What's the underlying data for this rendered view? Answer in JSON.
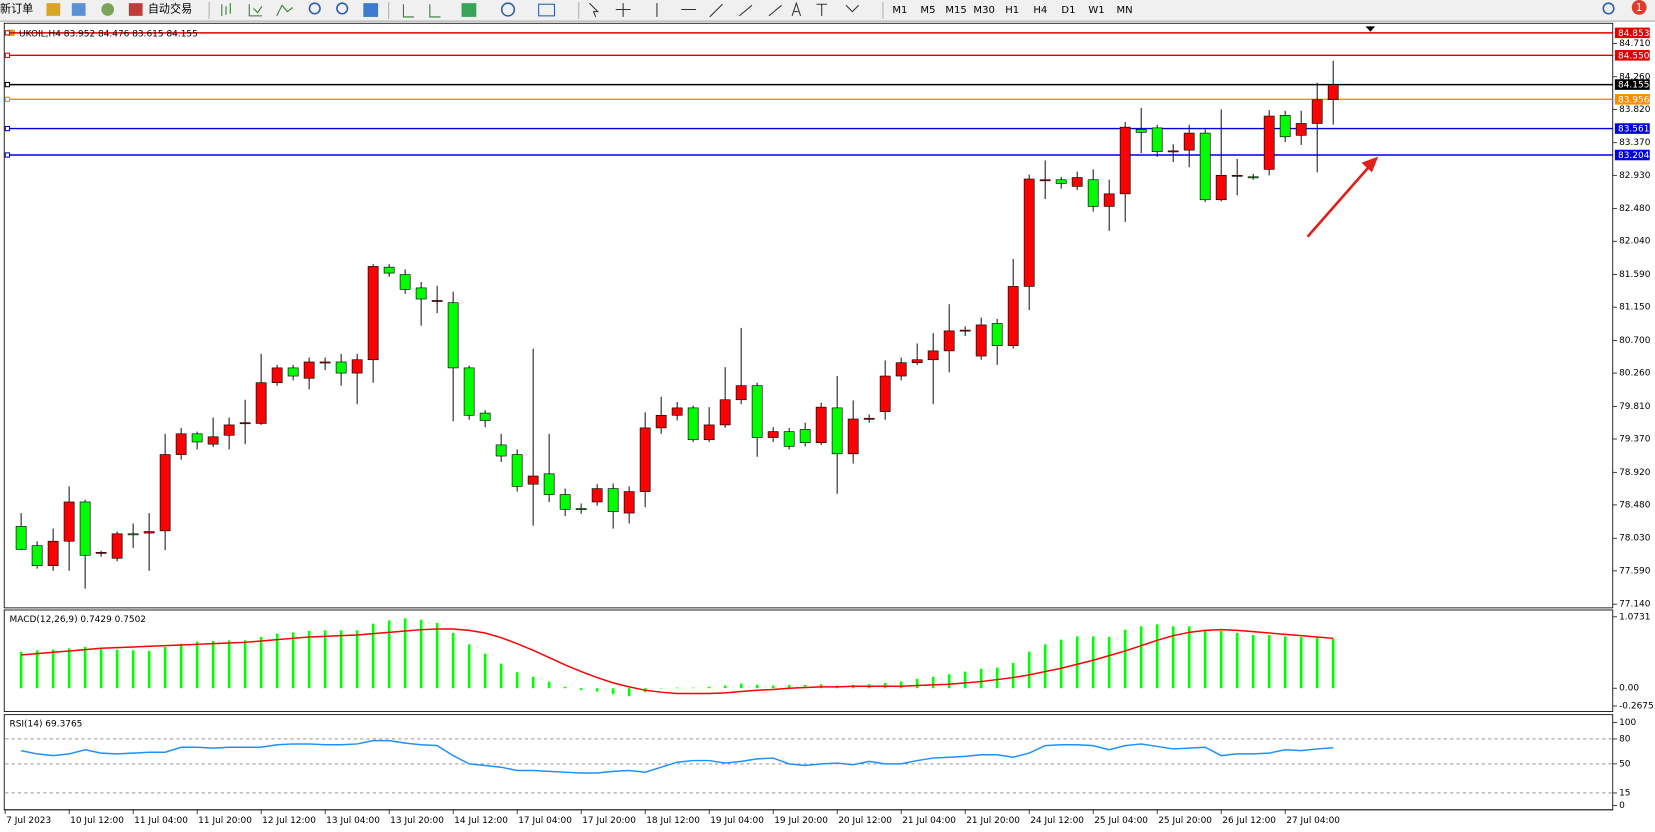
{
  "toolbar": {
    "new_order": "新订单",
    "auto_trade": "自动交易",
    "timeframes": [
      "M1",
      "M5",
      "M15",
      "M30",
      "H1",
      "H4",
      "D1",
      "W1",
      "MN"
    ]
  },
  "notifications": 1,
  "chart_data": [
    {
      "type": "candlestick",
      "title": "UKOIL,H4  83.952 84.476 83.615 84.155",
      "up_color": "#ff0000",
      "down_color": "#00ff00",
      "open": [
        78.19,
        77.93,
        77.66,
        77.99,
        78.52,
        77.83,
        77.76,
        78.09,
        78.1,
        78.13,
        79.16,
        79.44,
        79.3,
        79.42,
        79.58,
        79.58,
        80.13,
        80.33,
        80.19,
        80.4,
        80.41,
        80.26,
        80.44,
        81.69,
        81.59,
        81.41,
        81.23,
        81.21,
        80.33,
        79.72,
        79.29,
        79.16,
        78.76,
        78.9,
        78.62,
        78.43,
        78.52,
        78.7,
        78.37,
        78.66,
        79.52,
        79.69,
        79.79,
        79.36,
        79.56,
        79.9,
        80.09,
        79.39,
        79.47,
        79.5,
        79.32,
        79.79,
        79.17,
        79.64,
        79.74,
        80.22,
        80.4,
        80.44,
        80.56,
        80.83,
        80.49,
        80.93,
        80.63,
        81.43,
        82.86,
        82.87,
        82.78,
        82.87,
        82.51,
        82.68,
        83.55,
        83.57,
        83.25,
        83.27,
        83.5,
        82.6,
        82.92,
        82.91,
        83.01,
        83.74,
        83.47,
        83.63,
        83.952
      ],
      "high": [
        78.37,
        77.99,
        78.16,
        78.73,
        78.55,
        77.86,
        78.12,
        78.23,
        78.37,
        79.44,
        79.52,
        79.47,
        79.66,
        79.66,
        79.9,
        80.52,
        80.37,
        80.37,
        80.47,
        80.47,
        80.52,
        80.52,
        81.73,
        81.73,
        81.66,
        81.49,
        81.44,
        81.36,
        80.36,
        79.76,
        79.44,
        79.23,
        80.59,
        79.44,
        78.7,
        78.5,
        78.76,
        78.77,
        78.73,
        79.73,
        79.94,
        79.87,
        79.82,
        79.8,
        80.34,
        80.87,
        80.13,
        79.53,
        79.52,
        79.59,
        79.86,
        80.22,
        79.89,
        79.7,
        80.43,
        80.47,
        80.66,
        80.8,
        81.19,
        80.89,
        81.01,
        80.99,
        81.8,
        82.94,
        83.13,
        82.91,
        82.98,
        83.01,
        82.87,
        83.65,
        83.84,
        83.61,
        83.35,
        83.61,
        83.55,
        83.82,
        83.15,
        82.95,
        83.81,
        83.8,
        83.8,
        84.18,
        84.476
      ],
      "low": [
        77.87,
        77.62,
        77.59,
        77.59,
        77.35,
        77.78,
        77.72,
        77.9,
        77.59,
        77.87,
        79.09,
        79.23,
        79.26,
        79.23,
        79.3,
        79.56,
        80.09,
        80.16,
        80.04,
        80.3,
        80.09,
        79.84,
        80.13,
        81.56,
        81.33,
        80.9,
        81.07,
        79.61,
        79.63,
        79.53,
        79.06,
        78.66,
        78.2,
        78.52,
        78.33,
        78.36,
        78.47,
        78.16,
        78.23,
        78.45,
        79.44,
        79.62,
        79.33,
        79.33,
        79.52,
        79.84,
        79.13,
        79.33,
        79.23,
        79.27,
        79.29,
        78.63,
        79.04,
        79.59,
        79.63,
        80.16,
        80.37,
        79.84,
        80.27,
        80.76,
        80.44,
        80.37,
        80.59,
        81.11,
        82.61,
        82.75,
        82.73,
        82.44,
        82.18,
        82.3,
        83.23,
        83.18,
        83.11,
        83.04,
        82.57,
        82.58,
        82.66,
        82.87,
        82.93,
        83.38,
        83.34,
        82.97,
        83.615
      ],
      "close": [
        77.88,
        77.66,
        77.99,
        78.52,
        77.8,
        77.84,
        78.09,
        78.08,
        78.12,
        79.16,
        79.44,
        79.33,
        79.4,
        79.56,
        79.59,
        80.13,
        80.33,
        80.22,
        80.41,
        80.41,
        80.26,
        80.44,
        81.7,
        81.61,
        81.39,
        81.26,
        81.24,
        80.33,
        79.69,
        79.62,
        79.14,
        78.73,
        78.87,
        78.62,
        78.42,
        78.43,
        78.7,
        78.39,
        78.66,
        79.52,
        79.69,
        79.79,
        79.36,
        79.56,
        79.9,
        80.09,
        79.39,
        79.47,
        79.27,
        79.32,
        79.8,
        79.17,
        79.64,
        79.65,
        80.22,
        80.4,
        80.44,
        80.56,
        80.83,
        80.84,
        80.91,
        80.63,
        81.43,
        82.88,
        82.87,
        82.82,
        82.9,
        82.51,
        82.68,
        83.58,
        83.51,
        83.25,
        83.26,
        83.5,
        82.6,
        82.93,
        82.93,
        82.91,
        83.73,
        83.45,
        83.63,
        83.95,
        84.155
      ],
      "ylim": [
        77.09,
        84.94
      ],
      "yticks": [
        {
          "value": 84.71,
          "label": "84.710"
        },
        {
          "value": 84.26,
          "label": "84.260"
        },
        {
          "value": 83.82,
          "label": "83.820"
        },
        {
          "value": 83.37,
          "label": "83.370"
        },
        {
          "value": 82.93,
          "label": "82.930"
        },
        {
          "value": 82.48,
          "label": "82.480"
        },
        {
          "value": 82.04,
          "label": "82.040"
        },
        {
          "value": 81.59,
          "label": "81.590"
        },
        {
          "value": 81.15,
          "label": "81.150"
        },
        {
          "value": 80.7,
          "label": "80.700"
        },
        {
          "value": 80.26,
          "label": "80.260"
        },
        {
          "value": 79.81,
          "label": "79.810"
        },
        {
          "value": 79.37,
          "label": "79.370"
        },
        {
          "value": 78.92,
          "label": "78.920"
        },
        {
          "value": 78.48,
          "label": "78.480"
        },
        {
          "value": 78.03,
          "label": "78.030"
        },
        {
          "value": 77.59,
          "label": "77.590"
        },
        {
          "value": 77.14,
          "label": "77.140"
        }
      ],
      "levels": [
        {
          "value": 84.853,
          "label": "84.853",
          "color": "#e00000"
        },
        {
          "value": 84.55,
          "label": "84.550",
          "color": "#e00000"
        },
        {
          "value": 84.155,
          "label": "84.155",
          "color": "#000000"
        },
        {
          "value": 83.956,
          "label": "83.956",
          "color": "#ff8c00"
        },
        {
          "value": 83.561,
          "label": "83.561",
          "color": "#0000e0"
        },
        {
          "value": 83.204,
          "label": "83.204",
          "color": "#0000e0"
        }
      ],
      "x_labels": [
        "7 Jul 2023",
        "10 Jul 12:00",
        "11 Jul 04:00",
        "11 Jul 20:00",
        "12 Jul 12:00",
        "13 Jul 04:00",
        "13 Jul 20:00",
        "14 Jul 12:00",
        "17 Jul 04:00",
        "17 Jul 20:00",
        "18 Jul 12:00",
        "19 Jul 04:00",
        "19 Jul 20:00",
        "20 Jul 12:00",
        "21 Jul 04:00",
        "21 Jul 20:00",
        "24 Jul 12:00",
        "25 Jul 04:00",
        "25 Jul 20:00",
        "26 Jul 12:00",
        "27 Jul 04:00"
      ]
    },
    {
      "type": "macd",
      "title": "MACD(12,26,9) 0.7429 0.7502",
      "ylim": [
        -0.35,
        1.16
      ],
      "yticks": [
        1.0731,
        {
          "value": 0,
          "label": "0.00"
        },
        -0.2675
      ],
      "series": [
        {
          "style": "histogram",
          "color": "#00ff00",
          "values": [
            0.55,
            0.57,
            0.58,
            0.6,
            0.62,
            0.6,
            0.58,
            0.57,
            0.56,
            0.62,
            0.67,
            0.7,
            0.71,
            0.72,
            0.72,
            0.77,
            0.82,
            0.84,
            0.86,
            0.87,
            0.87,
            0.87,
            0.97,
            1.02,
            1.05,
            1.03,
            0.98,
            0.83,
            0.66,
            0.52,
            0.37,
            0.24,
            0.17,
            0.1,
            0.02,
            -0.03,
            -0.05,
            -0.09,
            -0.12,
            -0.06,
            0.0,
            0.01,
            0.01,
            0.02,
            0.04,
            0.07,
            0.05,
            0.04,
            0.05,
            0.05,
            0.06,
            0.04,
            0.05,
            0.06,
            0.08,
            0.1,
            0.14,
            0.17,
            0.21,
            0.25,
            0.29,
            0.31,
            0.38,
            0.55,
            0.66,
            0.73,
            0.78,
            0.78,
            0.77,
            0.88,
            0.93,
            0.96,
            0.93,
            0.93,
            0.88,
            0.86,
            0.83,
            0.8,
            0.8,
            0.78,
            0.77,
            0.76,
            0.7429
          ]
        },
        {
          "style": "line",
          "color": "#ff0000",
          "values": [
            0.5,
            0.52,
            0.54,
            0.56,
            0.58,
            0.6,
            0.61,
            0.62,
            0.63,
            0.64,
            0.65,
            0.66,
            0.67,
            0.68,
            0.69,
            0.71,
            0.73,
            0.75,
            0.77,
            0.78,
            0.79,
            0.8,
            0.82,
            0.84,
            0.86,
            0.88,
            0.89,
            0.89,
            0.87,
            0.83,
            0.76,
            0.67,
            0.57,
            0.46,
            0.35,
            0.25,
            0.16,
            0.08,
            0.02,
            -0.03,
            -0.06,
            -0.08,
            -0.08,
            -0.08,
            -0.07,
            -0.05,
            -0.03,
            -0.02,
            0.0,
            0.01,
            0.02,
            0.02,
            0.03,
            0.03,
            0.03,
            0.03,
            0.04,
            0.05,
            0.06,
            0.08,
            0.1,
            0.13,
            0.16,
            0.2,
            0.25,
            0.3,
            0.36,
            0.42,
            0.49,
            0.56,
            0.64,
            0.72,
            0.79,
            0.84,
            0.87,
            0.88,
            0.87,
            0.85,
            0.83,
            0.81,
            0.79,
            0.77,
            0.7502
          ]
        }
      ]
    },
    {
      "type": "line",
      "title": "RSI(14) 69.3765",
      "ylim": [
        -4,
        108
      ],
      "yticks": [
        100,
        80,
        50,
        15,
        0
      ],
      "grid": true,
      "series": [
        {
          "style": "line",
          "color": "#1e90ff",
          "values": [
            66,
            62,
            60,
            62,
            67,
            63,
            62,
            63,
            64,
            64,
            70,
            70,
            69,
            70,
            70,
            70,
            73,
            74,
            74,
            73,
            73,
            74,
            78,
            78,
            75,
            73,
            72,
            60,
            50,
            48,
            46,
            42,
            42,
            41,
            40,
            39,
            39,
            41,
            42,
            40,
            46,
            52,
            54,
            54,
            51,
            53,
            56,
            57,
            50,
            48,
            50,
            51,
            49,
            53,
            50,
            50,
            54,
            57,
            58,
            59,
            61,
            61,
            58,
            63,
            72,
            73,
            73,
            72,
            67,
            72,
            74,
            71,
            68,
            69,
            70,
            60,
            62,
            62,
            63,
            67,
            66,
            68,
            69.3765
          ]
        }
      ]
    }
  ]
}
